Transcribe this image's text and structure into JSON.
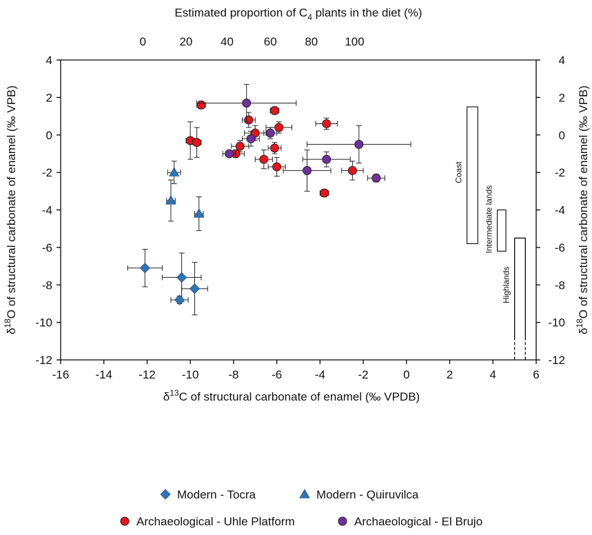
{
  "chart_data": {
    "type": "scatter",
    "xlabel": "δ13C of structural carbonate of enamel (‰ VPDB)",
    "xlabel_parts": {
      "pre": "δ",
      "sup": "13",
      "post": "C of structural carbonate of enamel (‰ VPDB)"
    },
    "ylabel": "δ18O of structural carbonate of enamel  (‰ VPB)",
    "ylabel_parts": {
      "pre": "δ",
      "sup": "18",
      "post": "O of structural carbonate of enamel  (‰ VPB)"
    },
    "top_xlabel": "Estimated proportion of C4 plants in the diet (%)",
    "top_xlabel_parts": {
      "pre": "Estimated proportion of C",
      "sub": "4",
      "post": " plants in the diet (%)"
    },
    "xlim": [
      -16,
      6
    ],
    "ylim": [
      -12,
      4
    ],
    "xticks": [
      "-16",
      "-14",
      "-12",
      "-10",
      "-8",
      "-6",
      "-4",
      "-2",
      "0",
      "2",
      "4",
      "6"
    ],
    "yticks": [
      "4",
      "2",
      "0",
      "-2",
      "-4",
      "-6",
      "-8",
      "-10",
      "-12"
    ],
    "top_ticks": [
      "0",
      "20",
      "40",
      "60",
      "80",
      "100"
    ],
    "top_tick_positions_d13C": [
      -12.2,
      -10.2,
      -8.3,
      -6.3,
      -4.4,
      -2.4
    ],
    "legend_position": "bottom",
    "series": [
      {
        "name": "Modern - Tocra",
        "marker": "diamond",
        "color": "#2E75B6",
        "points": [
          {
            "x": -12.1,
            "y": -7.1,
            "xerr": 0.8,
            "yerr": 1.0
          },
          {
            "x": -10.4,
            "y": -7.6,
            "xerr": 0.9,
            "yerr": 1.3
          },
          {
            "x": -9.8,
            "y": -8.2,
            "xerr": 0.6,
            "yerr": 1.4
          },
          {
            "x": -10.5,
            "y": -8.8,
            "xerr": 0.4,
            "yerr": 0.2
          }
        ]
      },
      {
        "name": "Modern - Quiruvilca",
        "marker": "triangle",
        "color": "#2E75B6",
        "points": [
          {
            "x": -10.75,
            "y": -2.0,
            "xerr": 0.3,
            "yerr": 0.6
          },
          {
            "x": -10.9,
            "y": -3.5,
            "xerr": 0.2,
            "yerr": 1.1
          },
          {
            "x": -9.6,
            "y": -4.2,
            "xerr": 0.2,
            "yerr": 0.9
          }
        ]
      },
      {
        "name": "Archaeological - Uhle Platform",
        "marker": "circle",
        "color": "#E8141C",
        "points": [
          {
            "x": -9.5,
            "y": 1.6,
            "xerr": 0.2,
            "yerr": 0.2
          },
          {
            "x": -10.0,
            "y": -0.3,
            "xerr": 0.2,
            "yerr": 1.0
          },
          {
            "x": -9.7,
            "y": -0.4,
            "xerr": 0.2,
            "yerr": 0.8
          },
          {
            "x": -7.3,
            "y": 0.8,
            "xerr": 0.3,
            "yerr": 0.4
          },
          {
            "x": -6.1,
            "y": 1.3,
            "xerr": 0.2,
            "yerr": 0.2
          },
          {
            "x": -7.0,
            "y": 0.1,
            "xerr": 0.5,
            "yerr": 0.4
          },
          {
            "x": -5.9,
            "y": 0.4,
            "xerr": 0.6,
            "yerr": 0.3
          },
          {
            "x": -7.7,
            "y": -0.6,
            "xerr": 0.4,
            "yerr": 0.3
          },
          {
            "x": -7.9,
            "y": -1.0,
            "xerr": 0.4,
            "yerr": 0.2
          },
          {
            "x": -6.1,
            "y": -0.7,
            "xerr": 0.3,
            "yerr": 0.3
          },
          {
            "x": -6.6,
            "y": -1.3,
            "xerr": 0.4,
            "yerr": 0.5
          },
          {
            "x": -6.0,
            "y": -1.7,
            "xerr": 0.4,
            "yerr": 0.5
          },
          {
            "x": -3.7,
            "y": 0.6,
            "xerr": 0.5,
            "yerr": 0.3
          },
          {
            "x": -2.5,
            "y": -1.9,
            "xerr": 0.5,
            "yerr": 0.5
          },
          {
            "x": -3.8,
            "y": -3.1,
            "xerr": 0.2,
            "yerr": 0.2
          }
        ]
      },
      {
        "name": "Archaeological - El Brujo",
        "marker": "circle",
        "color": "#7030A0",
        "points": [
          {
            "x": -7.4,
            "y": 1.7,
            "xerr": 2.3,
            "yerr": 1.0
          },
          {
            "x": -7.2,
            "y": -0.2,
            "xerr": 0.4,
            "yerr": 0.4
          },
          {
            "x": -6.3,
            "y": 0.1,
            "xerr": 0.3,
            "yerr": 0.3
          },
          {
            "x": -8.2,
            "y": -1.0,
            "xerr": 0.3,
            "yerr": 0.1
          },
          {
            "x": -4.6,
            "y": -1.9,
            "xerr": 1.1,
            "yerr": 1.1
          },
          {
            "x": -3.7,
            "y": -1.3,
            "xerr": 1.1,
            "yerr": 0.4
          },
          {
            "x": -2.2,
            "y": -0.5,
            "xerr": 2.4,
            "yerr": 1.0
          },
          {
            "x": -1.4,
            "y": -2.3,
            "xerr": 0.4,
            "yerr": 0.2
          }
        ]
      }
    ],
    "regions": [
      {
        "label": "Coast",
        "x": [
          2.8,
          3.3
        ],
        "y": [
          -5.8,
          1.5
        ],
        "label_y": -2.0
      },
      {
        "label": "Intermediate lands",
        "x": [
          4.2,
          4.6
        ],
        "y": [
          -6.2,
          -4.0
        ],
        "label_y": -4.5
      },
      {
        "label": "Highlands",
        "x": [
          5.0,
          5.5
        ],
        "y": [
          -10.8,
          -5.5
        ],
        "dashed_to": -12,
        "label_y": -8.0
      }
    ]
  }
}
